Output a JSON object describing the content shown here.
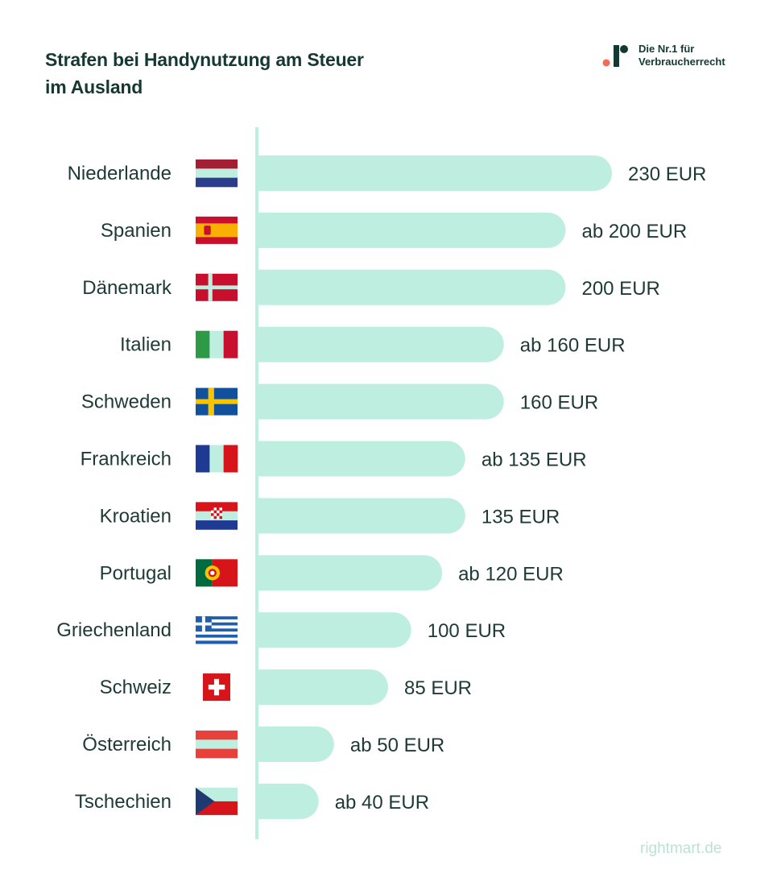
{
  "header": {
    "title_line1": "Strafen bei Handynutzung am Steuer",
    "title_line2": "im Ausland"
  },
  "brand": {
    "line1": "Die Nr.1 für",
    "line2": "Verbraucherrecht"
  },
  "footer": {
    "website": "rightmart.de"
  },
  "colors": {
    "bar": "#bdeee0",
    "axis": "#bdeee0",
    "text": "#1e3a35",
    "accent": "#f26b57"
  },
  "chart_data": {
    "type": "bar",
    "orientation": "horizontal",
    "title": "Strafen bei Handynutzung am Steuer im Ausland",
    "unit": "EUR",
    "xlim": [
      0,
      230
    ],
    "grid": false,
    "categories": [
      "Niederlande",
      "Spanien",
      "Dänemark",
      "Italien",
      "Schweden",
      "Frankreich",
      "Kroatien",
      "Portugal",
      "Griechenland",
      "Schweiz",
      "Österreich",
      "Tschechien"
    ],
    "values": [
      230,
      200,
      200,
      160,
      160,
      135,
      135,
      120,
      100,
      85,
      50,
      40
    ],
    "labels": [
      "230 EUR",
      "ab 200 EUR",
      "200 EUR",
      "ab 160 EUR",
      "160 EUR",
      "ab 135 EUR",
      "135 EUR",
      "ab 120 EUR",
      "100 EUR",
      "85 EUR",
      "ab 50 EUR",
      "ab 40 EUR"
    ],
    "flags": [
      "netherlands-flag-icon",
      "spain-flag-icon",
      "denmark-flag-icon",
      "italy-flag-icon",
      "sweden-flag-icon",
      "france-flag-icon",
      "croatia-flag-icon",
      "portugal-flag-icon",
      "greece-flag-icon",
      "switzerland-flag-icon",
      "austria-flag-icon",
      "czechia-flag-icon"
    ]
  }
}
